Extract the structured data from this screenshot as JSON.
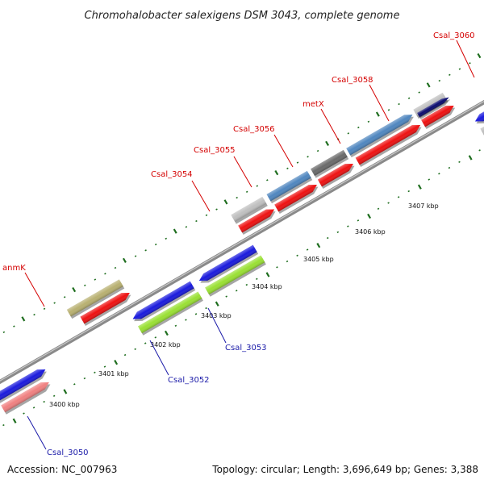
{
  "title": "Chromohalobacter salexigens DSM 3043, complete genome",
  "footer": {
    "accession": "Accession: NC_007963",
    "stats": "Topology: circular; Length: 3,696,649 bp; Genes: 3,388"
  },
  "colors": {
    "backbone": "#7a7a7a",
    "tick": "#1f6e1f",
    "label_top": "#d40000",
    "label_bottom": "#1a1aa8",
    "red": "#ee1111",
    "blue": "#1a1add",
    "steelblue": "#4f86bf",
    "gray": "#bfbfbf",
    "darkgray": "#6a6a6a",
    "navy": "#0a0a6e",
    "olive": "#b8b070",
    "pink": "#f08080",
    "lime": "#99e033",
    "green": "#3aa33a"
  },
  "scale": {
    "labels": [
      "3400 kbp",
      "3401 kbp",
      "3402 kbp",
      "3403 kbp",
      "3404 kbp",
      "3405 kbp",
      "3406 kbp",
      "3407 kbp"
    ]
  },
  "gene_labels": {
    "top": [
      "Csal_3060",
      "Csal_3058",
      "metX",
      "Csal_3056",
      "Csal_3055",
      "Csal_3054",
      "anmK"
    ],
    "bottom": [
      "Csal_3053",
      "Csal_3052",
      "Csal_3050"
    ]
  }
}
